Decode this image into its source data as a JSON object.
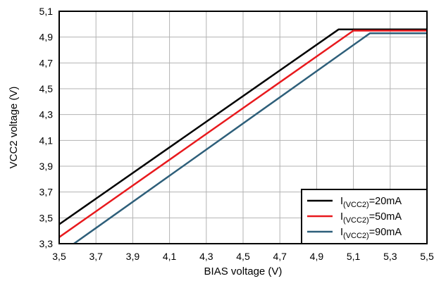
{
  "chart_data": {
    "type": "line",
    "xlabel": "BIAS voltage (V)",
    "ylabel": "VCC2 voltage (V)",
    "xlim": [
      3.5,
      5.5
    ],
    "ylim": [
      3.3,
      5.1
    ],
    "x_ticks": [
      "3,5",
      "3,7",
      "3,9",
      "4,1",
      "4,3",
      "4,5",
      "4,7",
      "4,9",
      "5,1",
      "5,3",
      "5,5"
    ],
    "y_ticks": [
      "3,3",
      "3,5",
      "3,7",
      "3,9",
      "4,1",
      "4,3",
      "4,5",
      "4,7",
      "4,9",
      "5,1"
    ],
    "grid": true,
    "legend_position": "bottom-right",
    "series": [
      {
        "name": "I(VCC2)=20mA",
        "label_main": "I",
        "label_sub": "(VCC2)",
        "label_tail": "=20mA",
        "color": "#000000",
        "points": [
          [
            3.5,
            3.45
          ],
          [
            5.02,
            4.96
          ],
          [
            5.5,
            4.96
          ]
        ]
      },
      {
        "name": "I(VCC2)=50mA",
        "label_main": "I",
        "label_sub": "(VCC2)",
        "label_tail": "=50mA",
        "color": "#e8191d",
        "points": [
          [
            3.5,
            3.35
          ],
          [
            5.1,
            4.95
          ],
          [
            5.5,
            4.95
          ]
        ]
      },
      {
        "name": "I(VCC2)=90mA",
        "label_main": "I",
        "label_sub": "(VCC2)",
        "label_tail": "=90mA",
        "color": "#2e5f7a",
        "points": [
          [
            3.58,
            3.3
          ],
          [
            5.19,
            4.93
          ],
          [
            5.5,
            4.93
          ]
        ]
      }
    ]
  }
}
